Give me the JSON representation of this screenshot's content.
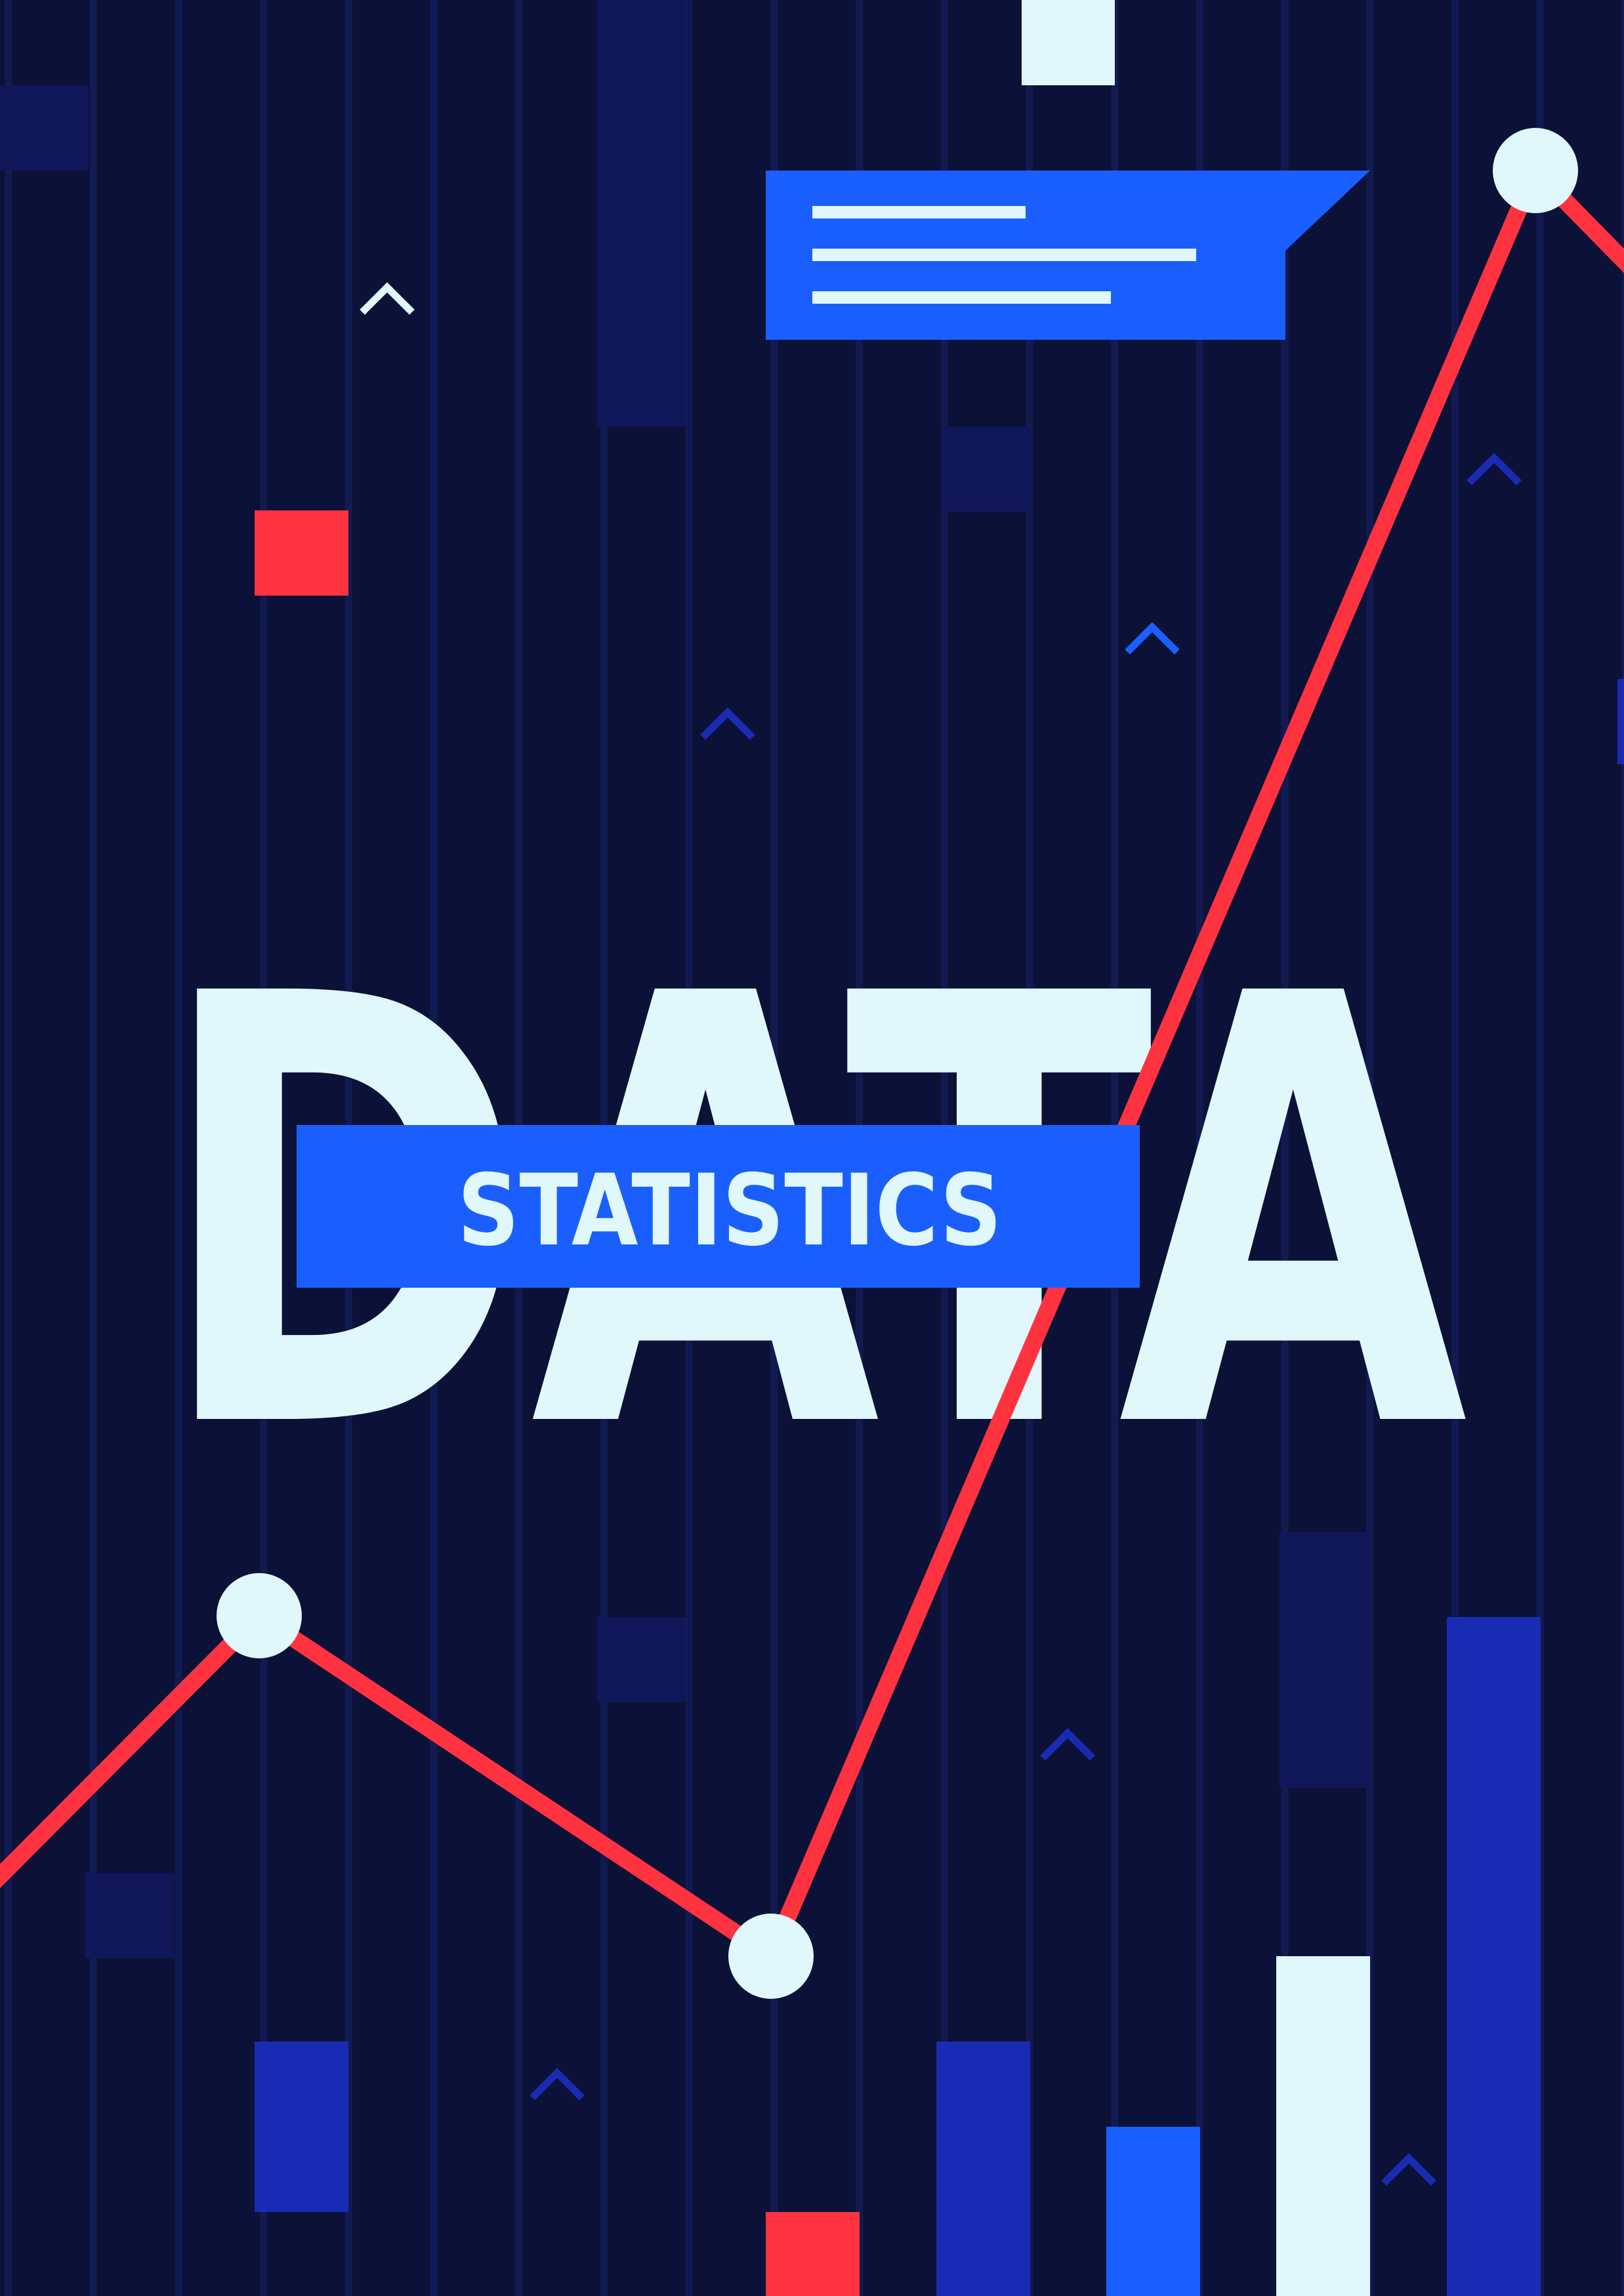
{
  "poster": {
    "headline": "DATA",
    "subheadline": "STATISTICS"
  },
  "colors": {
    "background": "#0c1137",
    "stripe": "#121a52",
    "panel_dark": "#101759",
    "panel_mid": "#1a2bb3",
    "accent_blue": "#1a5ffe",
    "accent_red": "#ff3340",
    "light": "#e0f7fb"
  },
  "icons": [
    "chevron-up-icon",
    "speech-bubble-icon"
  ]
}
